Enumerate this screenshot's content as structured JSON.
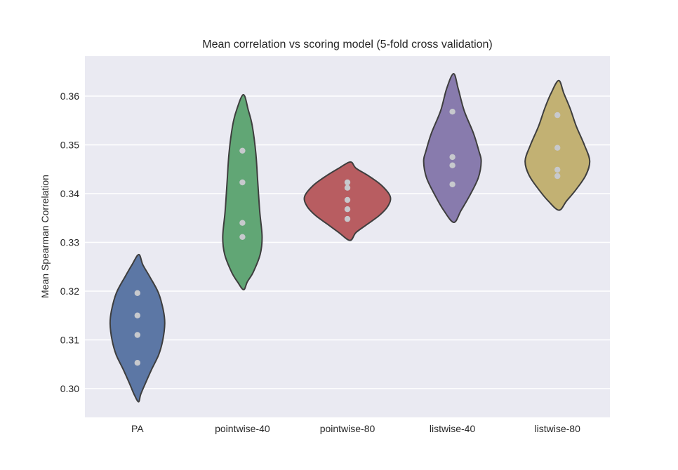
{
  "figure": {
    "title": "Mean correlation vs scoring model (5-fold cross validation)",
    "ylabel": "Mean Spearman Correlation"
  },
  "colors": {
    "figure_bg": "#FFFFFF",
    "plot_bg": "#EAEAF2",
    "grid": "#FFFFFF",
    "edge": "#3E3E3E",
    "point": "#C7C9CD",
    "text": "#262626"
  },
  "chart_data": {
    "type": "violin",
    "title": "Mean correlation vs scoring model (5-fold cross validation)",
    "xlabel": "",
    "ylabel": "Mean Spearman Correlation",
    "categories": [
      "PA",
      "pointwise-40",
      "pointwise-80",
      "listwise-40",
      "listwise-80"
    ],
    "ylim": [
      0.2941,
      0.3682
    ],
    "yticks": [
      0.3,
      0.31,
      0.32,
      0.33,
      0.34,
      0.35,
      0.36
    ],
    "grid": "horizontal",
    "legend": "none",
    "point_radius_px": 4.2,
    "series": [
      {
        "label": "PA",
        "color": "#5C77A5",
        "points": [
          0.3196,
          0.315,
          0.311,
          0.3053
        ],
        "range": [
          0.2973,
          0.3275
        ],
        "halfwidth": 0.52,
        "profile": [
          [
            0,
            0.05
          ],
          [
            0.07,
            0.2
          ],
          [
            0.15,
            0.45
          ],
          [
            0.26,
            0.77
          ],
          [
            0.38,
            0.95
          ],
          [
            0.47,
            1.0
          ],
          [
            0.58,
            0.93
          ],
          [
            0.68,
            0.78
          ],
          [
            0.78,
            0.52
          ],
          [
            0.88,
            0.28
          ],
          [
            0.95,
            0.12
          ],
          [
            1,
            0.04
          ]
        ]
      },
      {
        "label": "pointwise-40",
        "color": "#61A675",
        "points": [
          0.3488,
          0.3423,
          0.334,
          0.3311
        ],
        "range": [
          0.3203,
          0.3603
        ],
        "halfwidth": 0.375,
        "profile": [
          [
            0,
            0.05
          ],
          [
            0.08,
            0.3
          ],
          [
            0.16,
            0.5
          ],
          [
            0.3,
            0.68
          ],
          [
            0.45,
            0.78
          ],
          [
            0.6,
            0.88
          ],
          [
            0.73,
            1.0
          ],
          [
            0.82,
            0.9
          ],
          [
            0.91,
            0.55
          ],
          [
            0.96,
            0.25
          ],
          [
            1,
            0.06
          ]
        ]
      },
      {
        "label": "pointwise-80",
        "color": "#B85D61",
        "points": [
          0.3423,
          0.3412,
          0.3387,
          0.3368,
          0.3348
        ],
        "range": [
          0.3304,
          0.3465
        ],
        "halfwidth": 0.815,
        "profile": [
          [
            0,
            0.07
          ],
          [
            0.08,
            0.2
          ],
          [
            0.18,
            0.5
          ],
          [
            0.3,
            0.8
          ],
          [
            0.44,
            1.0
          ],
          [
            0.56,
            0.95
          ],
          [
            0.68,
            0.75
          ],
          [
            0.8,
            0.45
          ],
          [
            0.9,
            0.2
          ],
          [
            1,
            0.06
          ]
        ]
      },
      {
        "label": "listwise-40",
        "color": "#887BAD",
        "points": [
          0.3568,
          0.3475,
          0.3458,
          0.3419
        ],
        "range": [
          0.3341,
          0.3646
        ],
        "halfwidth": 0.548,
        "profile": [
          [
            0,
            0.04
          ],
          [
            0.1,
            0.2
          ],
          [
            0.25,
            0.41
          ],
          [
            0.4,
            0.73
          ],
          [
            0.52,
            0.92
          ],
          [
            0.59,
            1.0
          ],
          [
            0.7,
            0.9
          ],
          [
            0.82,
            0.6
          ],
          [
            0.92,
            0.3
          ],
          [
            1,
            0.05
          ]
        ]
      },
      {
        "label": "listwise-80",
        "color": "#C2B173",
        "points": [
          0.3561,
          0.3494,
          0.3449,
          0.3436
        ],
        "range": [
          0.3366,
          0.3632
        ],
        "halfwidth": 0.615,
        "profile": [
          [
            0,
            0.04
          ],
          [
            0.1,
            0.2
          ],
          [
            0.22,
            0.4
          ],
          [
            0.35,
            0.58
          ],
          [
            0.5,
            0.84
          ],
          [
            0.62,
            1.0
          ],
          [
            0.73,
            0.88
          ],
          [
            0.84,
            0.58
          ],
          [
            0.93,
            0.28
          ],
          [
            1,
            0.05
          ]
        ]
      }
    ]
  }
}
